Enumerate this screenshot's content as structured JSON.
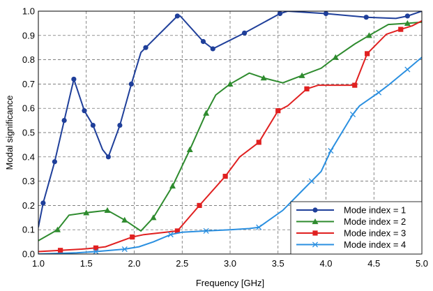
{
  "chart_data": {
    "type": "line",
    "xlabel": "Frequency [GHz]",
    "ylabel": "Modal significance",
    "xlim": [
      1.0,
      5.0
    ],
    "ylim": [
      0.0,
      1.0
    ],
    "xticks": [
      "1.0",
      "1.5",
      "2.0",
      "2.5",
      "3.0",
      "3.5",
      "4.0",
      "4.5",
      "5.0"
    ],
    "yticks": [
      "0.0",
      "0.1",
      "0.2",
      "0.3",
      "0.4",
      "0.5",
      "0.6",
      "0.7",
      "0.8",
      "0.9",
      "1.0"
    ],
    "grid": true,
    "legend_position": "bottom-right",
    "series": [
      {
        "name": "Mode index = 1",
        "color": "#1f3f9a",
        "marker": "circle",
        "x": [
          1.0,
          1.05,
          1.17,
          1.27,
          1.37,
          1.48,
          1.57,
          1.67,
          1.73,
          1.85,
          1.97,
          2.07,
          2.12,
          2.45,
          2.48,
          2.72,
          2.82,
          3.15,
          3.52,
          3.6,
          4.0,
          4.42,
          4.73,
          4.85,
          5.0
        ],
        "y": [
          0.11,
          0.21,
          0.38,
          0.55,
          0.72,
          0.59,
          0.53,
          0.43,
          0.4,
          0.53,
          0.7,
          0.83,
          0.85,
          0.98,
          0.98,
          0.875,
          0.845,
          0.91,
          0.99,
          1.0,
          0.99,
          0.975,
          0.97,
          0.98,
          1.0
        ],
        "marked": [
          1,
          2,
          3,
          4,
          5,
          6,
          8,
          9,
          10,
          12,
          13,
          15,
          16,
          17,
          18,
          20,
          21,
          23
        ]
      },
      {
        "name": "Mode index = 2",
        "color": "#2e8b2e",
        "marker": "triangle",
        "x": [
          1.0,
          1.2,
          1.32,
          1.5,
          1.72,
          1.9,
          2.07,
          2.2,
          2.4,
          2.58,
          2.75,
          2.85,
          3.0,
          3.2,
          3.35,
          3.55,
          3.75,
          3.95,
          4.1,
          4.3,
          4.45,
          4.65,
          4.85,
          5.0
        ],
        "y": [
          0.055,
          0.1,
          0.16,
          0.17,
          0.18,
          0.14,
          0.095,
          0.15,
          0.28,
          0.43,
          0.58,
          0.655,
          0.7,
          0.745,
          0.725,
          0.705,
          0.735,
          0.765,
          0.81,
          0.865,
          0.9,
          0.945,
          0.95,
          0.955
        ],
        "marked": [
          1,
          3,
          4,
          5,
          7,
          8,
          9,
          10,
          12,
          14,
          16,
          18,
          20,
          22
        ]
      },
      {
        "name": "Mode index = 3",
        "color": "#e02020",
        "marker": "square",
        "x": [
          1.0,
          1.23,
          1.45,
          1.6,
          1.7,
          1.98,
          2.1,
          2.45,
          2.68,
          2.95,
          3.1,
          3.3,
          3.5,
          3.6,
          3.8,
          3.92,
          4.1,
          4.3,
          4.43,
          4.63,
          4.78,
          4.9,
          5.0
        ],
        "y": [
          0.01,
          0.015,
          0.02,
          0.025,
          0.03,
          0.07,
          0.08,
          0.095,
          0.2,
          0.32,
          0.4,
          0.46,
          0.59,
          0.61,
          0.68,
          0.695,
          0.695,
          0.695,
          0.825,
          0.905,
          0.925,
          0.94,
          0.96
        ],
        "marked": [
          1,
          3,
          5,
          7,
          8,
          9,
          11,
          12,
          14,
          17,
          18,
          20
        ]
      },
      {
        "name": "Mode index = 4",
        "color": "#2a8fe0",
        "marker": "x",
        "x": [
          1.0,
          1.4,
          1.6,
          1.9,
          2.05,
          2.2,
          2.38,
          2.5,
          2.75,
          3.0,
          3.2,
          3.3,
          3.55,
          3.75,
          3.85,
          3.95,
          4.05,
          4.28,
          4.35,
          4.55,
          4.65,
          4.85,
          5.0
        ],
        "y": [
          0.0,
          0.005,
          0.01,
          0.02,
          0.03,
          0.05,
          0.08,
          0.09,
          0.095,
          0.1,
          0.105,
          0.11,
          0.18,
          0.26,
          0.3,
          0.34,
          0.425,
          0.575,
          0.61,
          0.665,
          0.695,
          0.76,
          0.81
        ],
        "marked": [
          2,
          3,
          6,
          8,
          11,
          14,
          16,
          17,
          19,
          21
        ]
      }
    ]
  }
}
